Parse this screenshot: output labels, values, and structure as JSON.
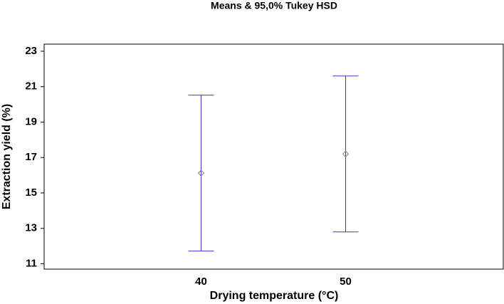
{
  "chart_data": {
    "type": "errorbar",
    "title": "Means & 95,0% Tukey HSD",
    "x_label": "Drying temperature (°C)",
    "y_label": "Extraction yield (%)",
    "categories": [
      "40",
      "50"
    ],
    "series": [
      {
        "color": "#3838d0",
        "marker_color": "#808080",
        "values": [
          16.12,
          17.2
        ],
        "errors": [
          4.4,
          4.4
        ]
      }
    ],
    "ylim": [
      10.7,
      23.4
    ],
    "yticks": [
      11,
      13,
      15,
      17,
      19,
      21,
      23
    ],
    "grid": false
  }
}
